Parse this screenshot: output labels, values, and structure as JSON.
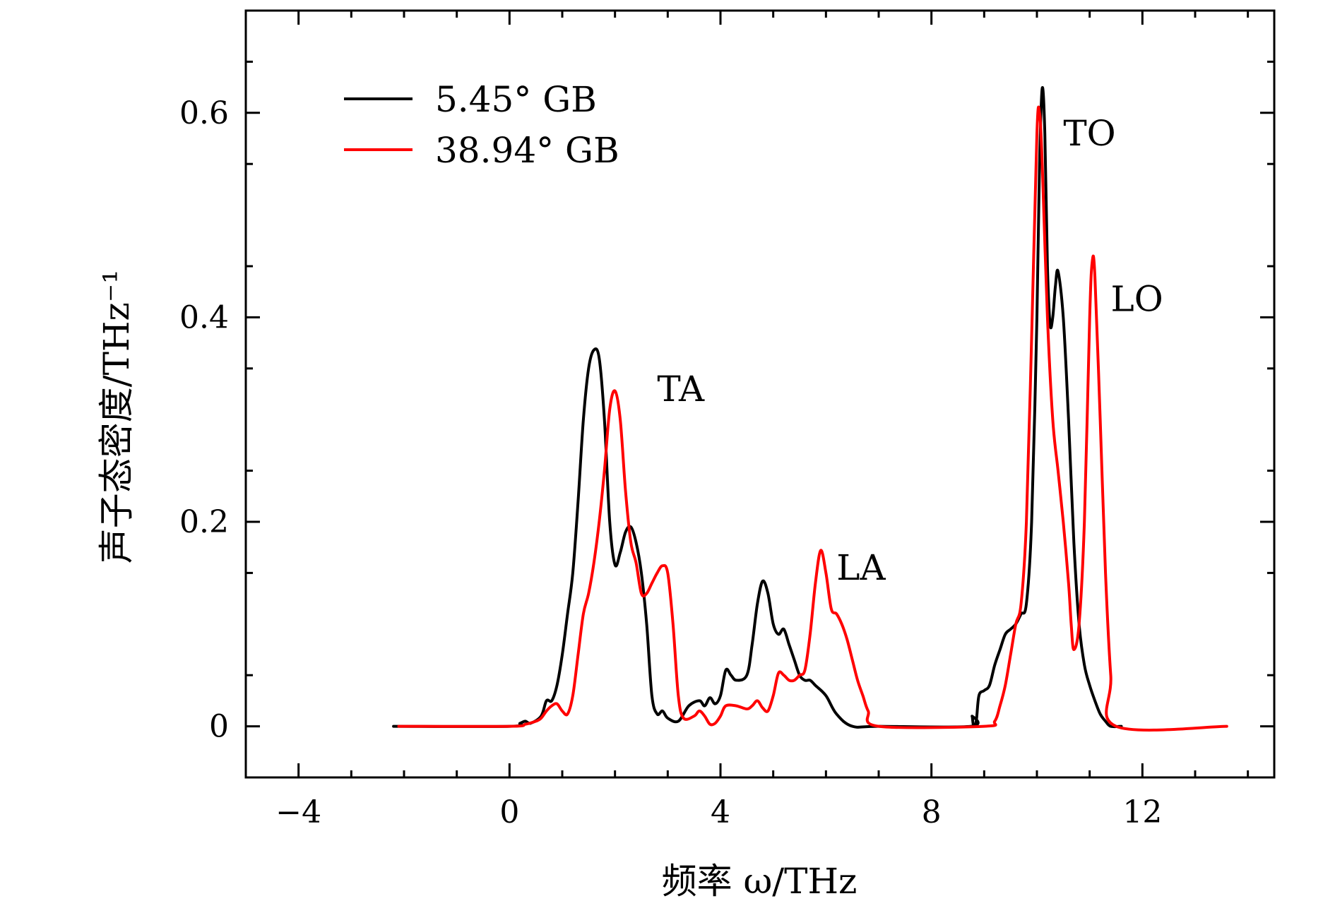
{
  "chart_data": {
    "type": "line",
    "xlabel": "频率 ω/THz",
    "ylabel": "声子态密度/THz⁻¹",
    "xlim": [
      -5,
      14.5
    ],
    "ylim": [
      -0.05,
      0.7
    ],
    "xticks": [
      -4,
      0,
      4,
      8,
      12
    ],
    "xtick_labels": [
      "−4",
      "0",
      "4",
      "8",
      "12"
    ],
    "yticks": [
      0,
      0.2,
      0.4,
      0.6
    ],
    "ytick_labels": [
      "0",
      "0.2",
      "0.4",
      "0.6"
    ],
    "grid": false,
    "legend_position": "top-left",
    "series": [
      {
        "name": "5.45° GB",
        "color": "#000000",
        "x": [
          -2.2,
          0.0,
          0.2,
          0.3,
          0.4,
          0.6,
          0.7,
          0.8,
          0.9,
          1.0,
          1.1,
          1.2,
          1.3,
          1.4,
          1.5,
          1.6,
          1.7,
          1.8,
          1.9,
          2.0,
          2.1,
          2.2,
          2.3,
          2.4,
          2.5,
          2.6,
          2.7,
          2.8,
          2.9,
          3.0,
          3.2,
          3.4,
          3.6,
          3.7,
          3.8,
          3.9,
          4.0,
          4.1,
          4.2,
          4.3,
          4.5,
          4.6,
          4.7,
          4.8,
          4.9,
          5.0,
          5.1,
          5.2,
          5.3,
          5.4,
          5.5,
          5.6,
          5.7,
          5.8,
          6.0,
          6.2,
          6.5,
          7.0,
          8.75,
          8.77,
          8.8,
          8.85,
          8.9,
          9.0,
          9.1,
          9.2,
          9.3,
          9.4,
          9.5,
          9.6,
          9.7,
          9.8,
          9.9,
          10.0,
          10.05,
          10.1,
          10.15,
          10.2,
          10.25,
          10.3,
          10.35,
          10.4,
          10.5,
          10.6,
          10.7,
          10.8,
          10.9,
          11.0,
          11.1,
          11.2,
          11.3,
          11.4,
          11.6
        ],
        "values": [
          0.0,
          0.0,
          0.003,
          0.005,
          0.003,
          0.01,
          0.025,
          0.025,
          0.04,
          0.07,
          0.11,
          0.15,
          0.22,
          0.3,
          0.35,
          0.368,
          0.36,
          0.3,
          0.2,
          0.158,
          0.17,
          0.19,
          0.195,
          0.18,
          0.15,
          0.1,
          0.03,
          0.012,
          0.015,
          0.008,
          0.005,
          0.02,
          0.025,
          0.02,
          0.028,
          0.022,
          0.03,
          0.055,
          0.05,
          0.045,
          0.05,
          0.08,
          0.12,
          0.142,
          0.13,
          0.1,
          0.09,
          0.095,
          0.08,
          0.065,
          0.05,
          0.045,
          0.045,
          0.04,
          0.03,
          0.012,
          0.0,
          0.0,
          0.0,
          0.01,
          0.0,
          0.005,
          0.03,
          0.035,
          0.04,
          0.06,
          0.075,
          0.09,
          0.095,
          0.1,
          0.11,
          0.12,
          0.2,
          0.4,
          0.55,
          0.624,
          0.58,
          0.45,
          0.393,
          0.4,
          0.43,
          0.445,
          0.4,
          0.3,
          0.18,
          0.1,
          0.06,
          0.04,
          0.025,
          0.012,
          0.005,
          0.0,
          0.0
        ]
      },
      {
        "name": "38.94° GB",
        "color": "#ff0000",
        "x": [
          -2.1,
          0.0,
          0.3,
          0.5,
          0.6,
          0.7,
          0.8,
          0.9,
          1.0,
          1.1,
          1.2,
          1.3,
          1.4,
          1.5,
          1.6,
          1.7,
          1.8,
          1.9,
          2.0,
          2.1,
          2.2,
          2.3,
          2.4,
          2.5,
          2.6,
          2.7,
          2.8,
          2.9,
          3.0,
          3.1,
          3.2,
          3.3,
          3.5,
          3.6,
          3.7,
          3.8,
          3.9,
          4.0,
          4.1,
          4.3,
          4.5,
          4.6,
          4.7,
          4.8,
          4.9,
          5.0,
          5.1,
          5.2,
          5.3,
          5.4,
          5.5,
          5.6,
          5.7,
          5.8,
          5.9,
          6.0,
          6.1,
          6.2,
          6.3,
          6.4,
          6.5,
          6.6,
          6.7,
          6.8,
          7.0,
          9.0,
          9.2,
          9.3,
          9.4,
          9.5,
          9.6,
          9.7,
          9.8,
          9.9,
          10.0,
          10.05,
          10.1,
          10.2,
          10.3,
          10.4,
          10.5,
          10.6,
          10.65,
          10.7,
          10.8,
          10.9,
          11.0,
          11.05,
          11.1,
          11.2,
          11.3,
          11.4,
          11.5,
          13.6
        ],
        "values": [
          0.0,
          0.0,
          0.002,
          0.005,
          0.008,
          0.015,
          0.02,
          0.022,
          0.015,
          0.012,
          0.03,
          0.07,
          0.11,
          0.13,
          0.16,
          0.2,
          0.25,
          0.31,
          0.328,
          0.3,
          0.23,
          0.18,
          0.16,
          0.13,
          0.13,
          0.14,
          0.15,
          0.157,
          0.15,
          0.1,
          0.03,
          0.008,
          0.01,
          0.015,
          0.01,
          0.002,
          0.003,
          0.01,
          0.02,
          0.02,
          0.017,
          0.02,
          0.025,
          0.018,
          0.015,
          0.03,
          0.052,
          0.05,
          0.045,
          0.045,
          0.05,
          0.055,
          0.09,
          0.14,
          0.172,
          0.15,
          0.115,
          0.11,
          0.1,
          0.085,
          0.065,
          0.045,
          0.03,
          0.015,
          0.0,
          0.0,
          0.005,
          0.02,
          0.04,
          0.07,
          0.1,
          0.12,
          0.2,
          0.38,
          0.58,
          0.6,
          0.55,
          0.4,
          0.3,
          0.25,
          0.2,
          0.14,
          0.1,
          0.075,
          0.1,
          0.2,
          0.4,
          0.455,
          0.44,
          0.3,
          0.15,
          0.05,
          0.0,
          0.0
        ]
      }
    ],
    "annotations": [
      {
        "text": "TA",
        "x": 2.8,
        "y": 0.33
      },
      {
        "text": "LA",
        "x": 6.2,
        "y": 0.155
      },
      {
        "text": "TO",
        "x": 10.5,
        "y": 0.58
      },
      {
        "text": "LO",
        "x": 11.4,
        "y": 0.418
      }
    ]
  }
}
